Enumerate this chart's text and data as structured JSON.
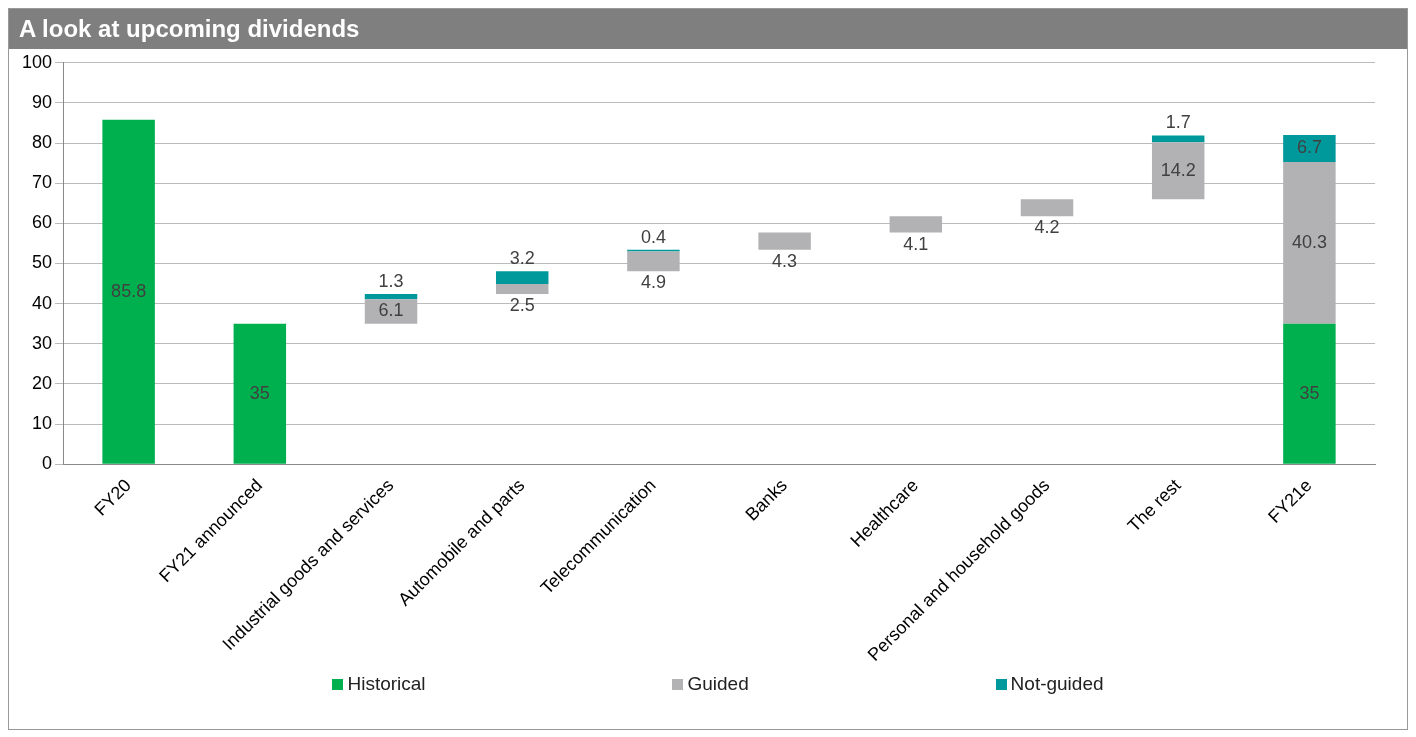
{
  "chart_data": {
    "type": "bar",
    "title": "A look at upcoming dividends",
    "categories": [
      "FY20",
      "FY21 announced",
      "Industrial goods and services",
      "Automobile and parts",
      "Telecommunication",
      "Banks",
      "Healthcare",
      "Personal and household goods",
      "The rest",
      "FY21e"
    ],
    "series": [
      {
        "name": "Historical",
        "color": "#00b04f",
        "values": [
          85.8,
          35,
          null,
          null,
          null,
          null,
          null,
          null,
          null,
          35
        ]
      },
      {
        "name": "Guided",
        "color": "#b2b2b5",
        "values": [
          null,
          null,
          6.1,
          2.5,
          4.9,
          4.3,
          4.1,
          4.2,
          14.2,
          40.3
        ],
        "base": [
          null,
          null,
          35,
          42.4,
          48.1,
          53.4,
          57.7,
          61.8,
          66,
          35
        ]
      },
      {
        "name": "Not-guided",
        "color": "#00999b",
        "values": [
          null,
          null,
          1.3,
          3.2,
          0.4,
          null,
          null,
          null,
          1.7,
          6.7
        ],
        "base": [
          null,
          null,
          41.1,
          44.9,
          53,
          null,
          null,
          null,
          80.2,
          75.3
        ]
      }
    ],
    "ylim": [
      0,
      100
    ],
    "yticks": [
      0,
      10,
      20,
      30,
      40,
      50,
      60,
      70,
      80,
      90,
      100
    ],
    "grid": "y",
    "legend": "bottom",
    "data_labels": true
  }
}
